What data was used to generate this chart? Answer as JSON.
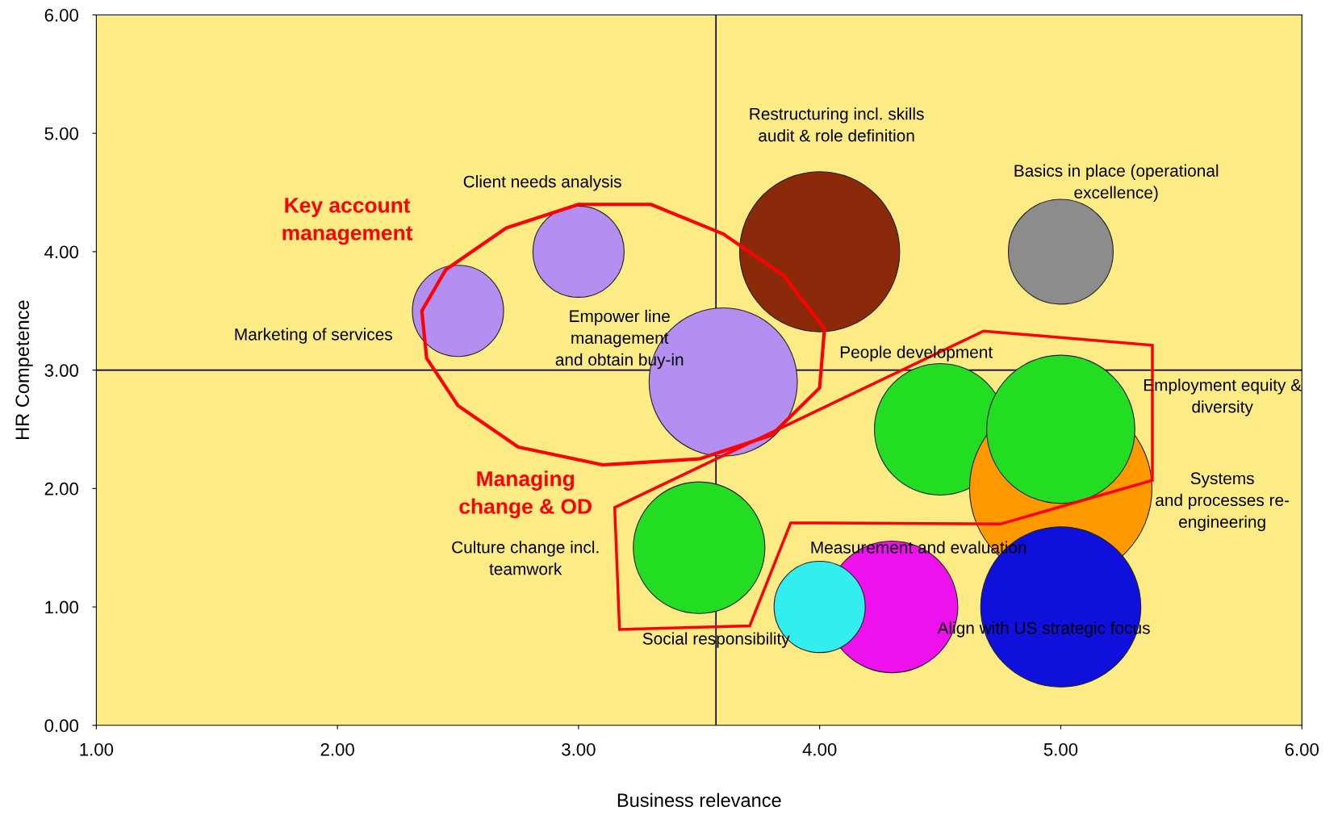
{
  "chart_data": {
    "type": "bubble",
    "xlabel": "Business relevance",
    "ylabel": "HR Competence",
    "xlim": [
      1,
      6
    ],
    "ylim": [
      0,
      6
    ],
    "xticks": [
      {
        "value": 1,
        "label": "1.00"
      },
      {
        "value": 2,
        "label": "2.00"
      },
      {
        "value": 3,
        "label": "3.00"
      },
      {
        "value": 4,
        "label": "4.00"
      },
      {
        "value": 5,
        "label": "5.00"
      },
      {
        "value": 6,
        "label": "6.00"
      }
    ],
    "yticks": [
      {
        "value": 0,
        "label": "0.00"
      },
      {
        "value": 1,
        "label": "1.00"
      },
      {
        "value": 2,
        "label": "2.00"
      },
      {
        "value": 3,
        "label": "3.00"
      },
      {
        "value": 4,
        "label": "4.00"
      },
      {
        "value": 5,
        "label": "5.00"
      },
      {
        "value": 6,
        "label": "6.00"
      }
    ],
    "grid": false,
    "legend": false,
    "series": [
      {
        "name": "Marketing of services",
        "color": "#b48ef0",
        "x": [
          2.5
        ],
        "values": [
          3.5
        ],
        "sizes": [
          0.25
        ]
      },
      {
        "name": "Client needs analysis",
        "color": "#b48ef0",
        "x": [
          3.0
        ],
        "values": [
          4.0
        ],
        "sizes": [
          0.25
        ]
      },
      {
        "name": "Empower line\nmanagement\nand obtain buy-in",
        "color": "#b48ef0",
        "x": [
          3.6
        ],
        "values": [
          2.9
        ],
        "sizes": [
          0.66
        ]
      },
      {
        "name": "Restructuring incl. skills\naudit & role definition",
        "color": "#8b2a0a",
        "x": [
          4.0
        ],
        "values": [
          4.0
        ],
        "sizes": [
          0.77
        ]
      },
      {
        "name": "Basics in place (operational\nexcellence)",
        "color": "#8c8c8c",
        "x": [
          5.0
        ],
        "values": [
          4.0
        ],
        "sizes": [
          0.33
        ]
      },
      {
        "name": "People development",
        "color": "#22dd22",
        "x": [
          4.5
        ],
        "values": [
          2.5
        ],
        "sizes": [
          0.52
        ]
      },
      {
        "name": "Systems\nand processes re-\nengineering",
        "color": "#ff9900",
        "x": [
          5.0
        ],
        "values": [
          2.0
        ],
        "sizes": [
          1
        ]
      },
      {
        "name": "Employment equity &\ndiversity",
        "color": "#22dd22",
        "x": [
          5.0
        ],
        "values": [
          2.5
        ],
        "sizes": [
          0.66
        ]
      },
      {
        "name": "Culture change incl.\nteamwork",
        "color": "#22dd22",
        "x": [
          3.5
        ],
        "values": [
          1.5
        ],
        "sizes": [
          0.52
        ]
      },
      {
        "name": "Measurement and evaluation",
        "color": "#ee11ee",
        "x": [
          4.3
        ],
        "values": [
          1.0
        ],
        "sizes": [
          0.52
        ]
      },
      {
        "name": "Social responsibility",
        "color": "#33eeee",
        "x": [
          4.0
        ],
        "values": [
          1.0
        ],
        "sizes": [
          0.25
        ]
      },
      {
        "name": "Align with US strategic focus",
        "color": "#1010dd",
        "x": [
          5.0
        ],
        "values": [
          1.0
        ],
        "sizes": [
          0.77
        ]
      }
    ],
    "ref_lines": [
      {
        "axis": "x",
        "value": 3.57,
        "color": "#000000"
      },
      {
        "axis": "y",
        "value": 3.0,
        "color": "#000000"
      }
    ],
    "annotations": [
      "Key account\nmanagement",
      "Managing\nchange & OD"
    ]
  }
}
